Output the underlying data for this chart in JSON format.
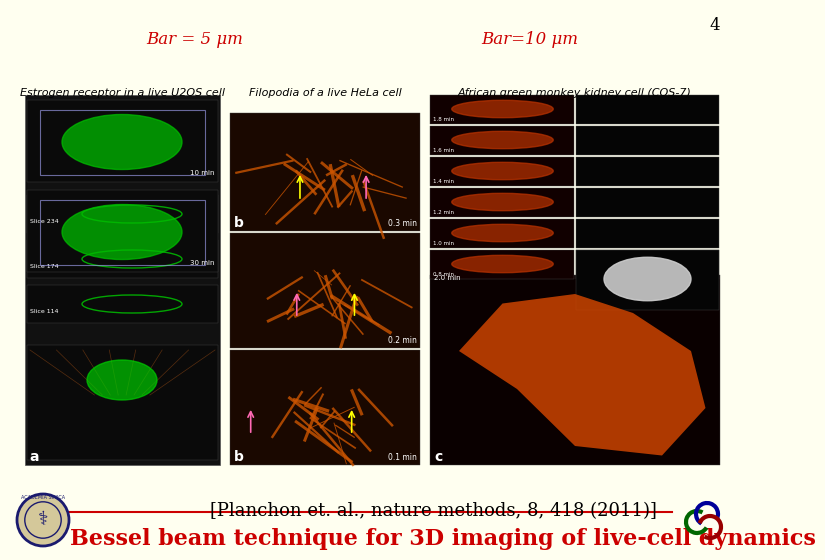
{
  "background_color": "#fffff0",
  "title_line1": "Bessel beam technique for 3D imaging of live-cell dynamics",
  "title_line2": "[Planchon et. al., nature methods, 8, 418 (2011)]",
  "title_color": "#cc0000",
  "title_underline": true,
  "subtitle_color": "#000000",
  "logo_left": true,
  "logo_right": true,
  "main_image_placeholder": true,
  "caption_left": "Estrogen receptor in a live U2OS cell",
  "caption_mid": "Filopodia of a live HeLa cell",
  "caption_right": "African green monkey kidney cell (COS-7)",
  "bar_left": "Bar = 5 μm",
  "bar_right": "Bar=10 μm",
  "bar_color": "#cc0000",
  "slide_number": "4",
  "caption_fontsize": 8,
  "bar_fontsize": 12
}
